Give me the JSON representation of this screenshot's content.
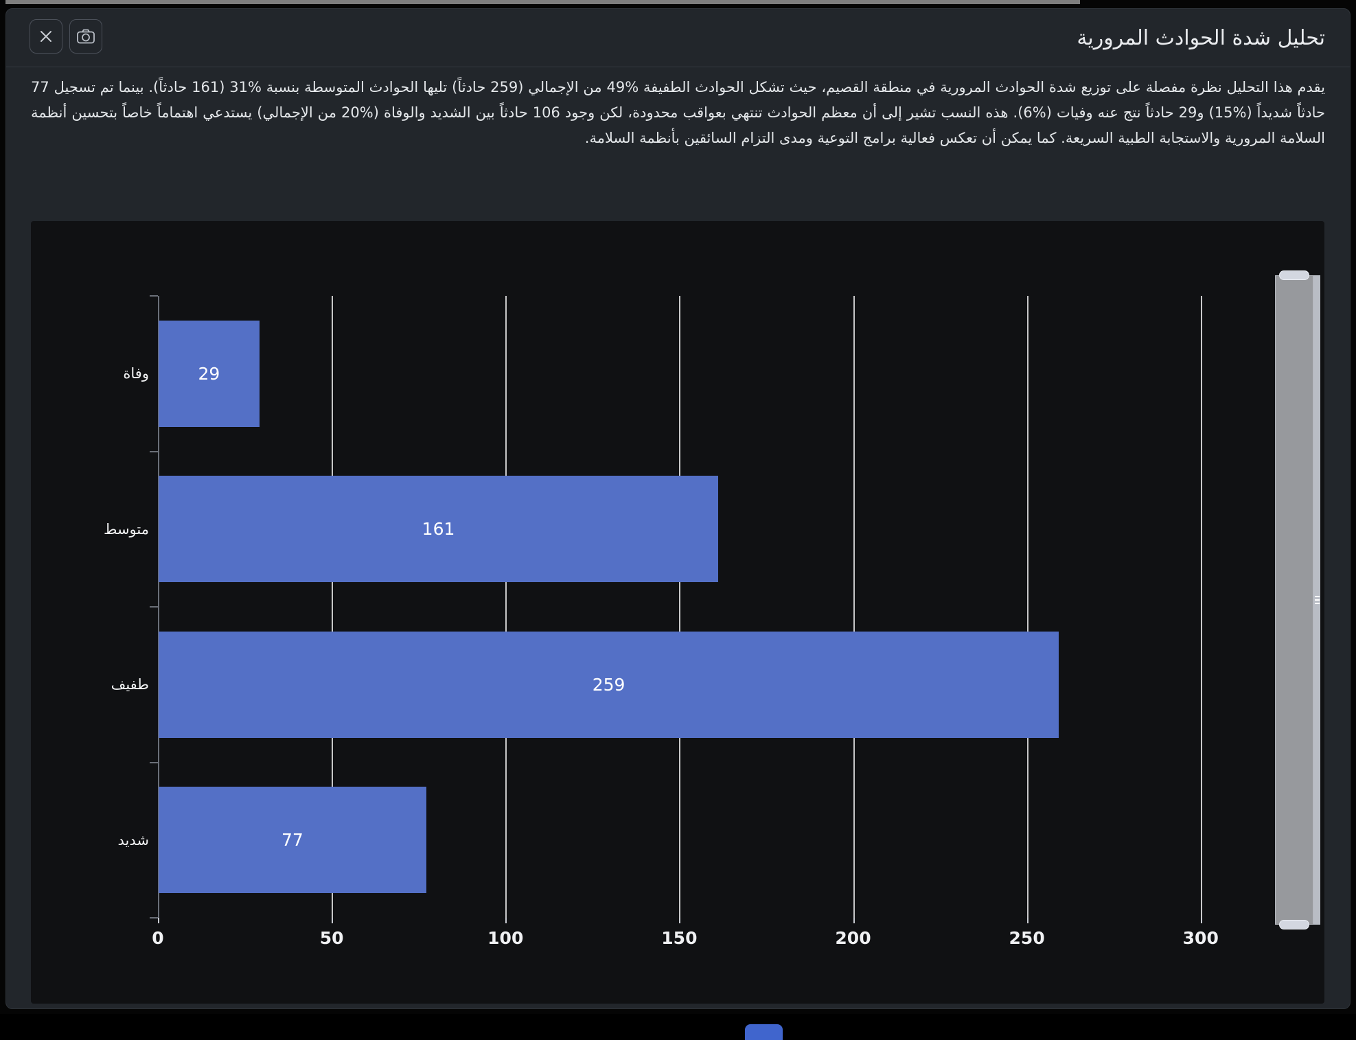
{
  "window": {
    "top_strip_color": "#7e7e7e"
  },
  "header": {
    "title": "تحليل شدة الحوادث المرورية",
    "buttons": [
      {
        "name": "close",
        "icon": "close-icon"
      },
      {
        "name": "screenshot",
        "icon": "camera-icon"
      }
    ]
  },
  "description": {
    "text": "يقدم هذا التحليل نظرة مفصلة على توزيع شدة الحوادث المرورية في منطقة القصيم، حيث تشكل الحوادث الطفيفة %49 من الإجمالي (259 حادثاً) تليها الحوادث المتوسطة بنسبة %31 (161 حادثاً). بينما تم تسجيل 77 حادثاً شديداً (%15) و29 حادثاً نتج عنه وفيات (%6). هذه النسب تشير إلى أن معظم الحوادث تنتهي بعواقب محدودة، لكن وجود 106 حادثاً بين الشديد والوفاة (%20 من الإجمالي) يستدعي اهتماماً خاصاً بتحسين أنظمة السلامة المرورية والاستجابة الطبية السريعة. كما يمكن أن تعكس فعالية برامج التوعية ومدى التزام السائقين بأنظمة السلامة."
  },
  "chart_data": {
    "type": "bar",
    "orientation": "horizontal",
    "title": "",
    "categories": [
      "وفاة",
      "متوسط",
      "طفيف",
      "شديد"
    ],
    "values": [
      29,
      161,
      259,
      77
    ],
    "xticks": [
      0,
      50,
      100,
      150,
      200,
      250,
      300
    ],
    "xlim": [
      0,
      320
    ],
    "grid": true,
    "legend": false,
    "bar_color": "#5470c6",
    "label_color": "#ffffff",
    "axis_color": "#6a6f78",
    "grid_color": "rgba(246,246,248,0.8)",
    "background": "#101113"
  },
  "taskbar": {
    "accent_color": "#4065cd"
  }
}
